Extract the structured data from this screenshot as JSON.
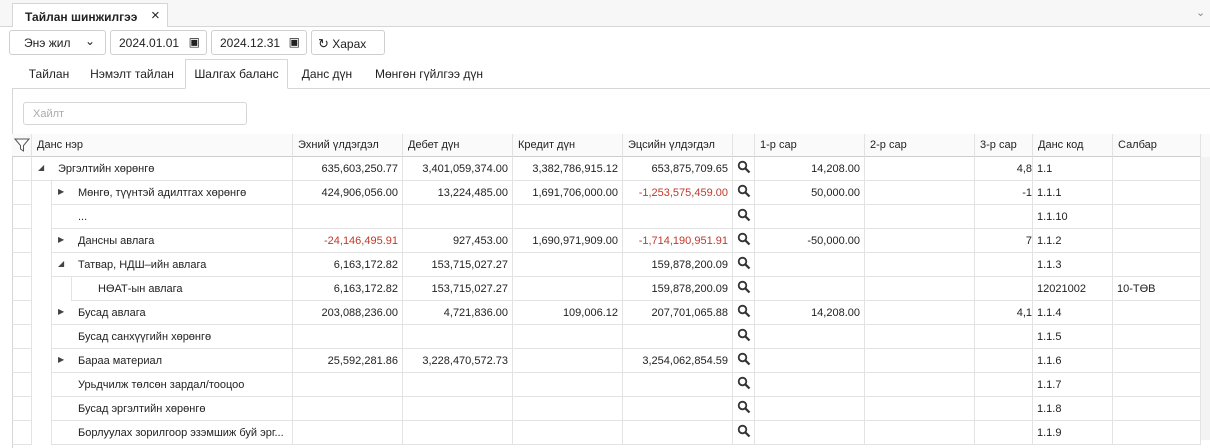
{
  "window_tab": {
    "title": "Тайлан шинжилгээ"
  },
  "toolbar": {
    "period": "Энэ жил",
    "date_from": "2024.01.01",
    "date_to": "2024.12.31",
    "button": "Харах"
  },
  "subtabs": {
    "items": [
      "Тайлан",
      "Нэмэлт тайлан",
      "Шалгах баланс",
      "Данс дүн",
      "Мөнгөн гүйлгээ дүн"
    ],
    "active": 2
  },
  "search": {
    "placeholder": "Хайлт"
  },
  "table": {
    "columns": [
      "Данс нэр",
      "Эхний үлдэгдэл",
      "Дебет дүн",
      "Кредит дүн",
      "Эцсийн үлдэгдэл",
      "1-р сар",
      "2-р сар",
      "3-р сар",
      "Данс код",
      "Салбар"
    ],
    "rows": [
      {
        "name": "Эргэлтийн хөрөнгө",
        "level": 0,
        "expand": "expanded",
        "cells": [
          "635,603,250.77",
          "3,401,059,374.00",
          "3,382,786,915.12",
          "653,875,709.65",
          "14,208.00",
          null,
          "4,8",
          "1.1",
          null
        ]
      },
      {
        "name": "Мөнгө, түүнтэй адилтгах хөрөнгө",
        "level": 1,
        "expand": "collapsed",
        "cells": [
          "424,906,056.00",
          "13,224,485.00",
          "1,691,706,000.00",
          "-1,253,575,459.00",
          "50,000.00",
          null,
          "-1",
          "1.1.1",
          null
        ]
      },
      {
        "name": "...",
        "level": 1,
        "expand": null,
        "cells": [
          null,
          null,
          null,
          null,
          null,
          null,
          null,
          "1.1.10",
          null
        ]
      },
      {
        "name": "Дансны авлага",
        "level": 1,
        "expand": "collapsed",
        "cells": [
          "-24,146,495.91",
          "927,453.00",
          "1,690,971,909.00",
          "-1,714,190,951.91",
          "-50,000.00",
          null,
          "7",
          "1.1.2",
          null
        ]
      },
      {
        "name": "Татвар, НДШ–ийн авлага",
        "level": 1,
        "expand": "expanded",
        "cells": [
          "6,163,172.82",
          "153,715,027.27",
          null,
          "159,878,200.09",
          null,
          null,
          null,
          "1.1.3",
          null
        ]
      },
      {
        "name": "НӨАТ-ын авлага",
        "level": 2,
        "expand": null,
        "cells": [
          "6,163,172.82",
          "153,715,027.27",
          null,
          "159,878,200.09",
          null,
          null,
          null,
          "12021002",
          "10-ТӨВ"
        ]
      },
      {
        "name": "Бусад авлага",
        "level": 1,
        "expand": "collapsed",
        "cells": [
          "203,088,236.00",
          "4,721,836.00",
          "109,006.12",
          "207,701,065.88",
          "14,208.00",
          null,
          "4,1",
          "1.1.4",
          null
        ]
      },
      {
        "name": "Бусад санхүүгийн хөрөнгө",
        "level": 1,
        "expand": null,
        "cells": [
          null,
          null,
          null,
          null,
          null,
          null,
          null,
          "1.1.5",
          null
        ]
      },
      {
        "name": "Бараа материал",
        "level": 1,
        "expand": "collapsed",
        "cells": [
          "25,592,281.86",
          "3,228,470,572.73",
          null,
          "3,254,062,854.59",
          null,
          null,
          null,
          "1.1.6",
          null
        ]
      },
      {
        "name": "Урьдчилж төлсөн зардал/тооцоо",
        "level": 1,
        "expand": null,
        "cells": [
          null,
          null,
          null,
          null,
          null,
          null,
          null,
          "1.1.7",
          null
        ]
      },
      {
        "name": "Бусад эргэлтийн хөрөнгө",
        "level": 1,
        "expand": null,
        "cells": [
          null,
          null,
          null,
          null,
          null,
          null,
          null,
          "1.1.8",
          null
        ]
      },
      {
        "name": "Борлуулах зорилгоор эзэмшиж буй эрг...",
        "level": 1,
        "expand": null,
        "cells": [
          null,
          null,
          null,
          null,
          null,
          null,
          null,
          "1.1.9",
          null
        ]
      }
    ]
  }
}
